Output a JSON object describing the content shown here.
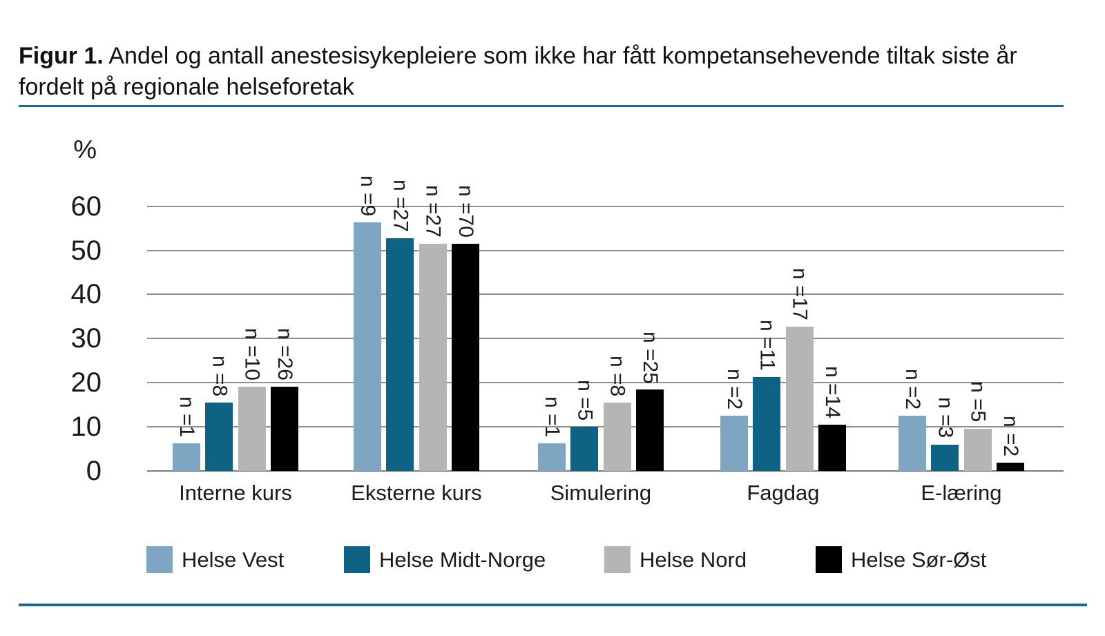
{
  "title": {
    "prefix": "Figur 1.",
    "rest": " Andel og antall anestesisykepleiere som ikke har fått kompetansehevende tiltak siste år fordelt på regionale helseforetak"
  },
  "colors": {
    "divider_rule": "#1b6890",
    "gridline": "#8e8e8e",
    "text": "#1a1a1a"
  },
  "chart_data": {
    "type": "bar",
    "title": "Figur 1. Andel og antall anestesisykepleiere som ikke har fått kompetansehevende tiltak siste år fordelt på regionale helseforetak",
    "xlabel": "",
    "ylabel": "%",
    "ylim": [
      0,
      60
    ],
    "yticks": [
      0,
      10,
      20,
      30,
      40,
      50,
      60
    ],
    "grid": true,
    "legend_position": "bottom",
    "categories": [
      "Interne kurs",
      "Eksterne kurs",
      "Simulering",
      "Fagdag",
      "E-læring"
    ],
    "series": [
      {
        "name": "Helse Vest",
        "color": "#7ea6c2",
        "values": [
          6.3,
          56.3,
          6.3,
          12.5,
          12.5
        ],
        "labels": [
          "n =1",
          "n =9",
          "n =1",
          "n =2",
          "n =2"
        ]
      },
      {
        "name": "Helse Midt-Norge",
        "color": "#0e6283",
        "values": [
          15.5,
          52.7,
          10.0,
          21.3,
          6.0
        ],
        "labels": [
          "n =8",
          "n =27",
          "n =5",
          "n =11",
          "n =3"
        ]
      },
      {
        "name": "Helse Nord",
        "color": "#b5b5b5",
        "values": [
          19.1,
          51.5,
          15.5,
          32.7,
          9.6
        ],
        "labels": [
          "n =10",
          "n =27",
          "n =8",
          "n =17",
          "n =5"
        ]
      },
      {
        "name": "Helse Sør-Øst",
        "color": "#000000",
        "values": [
          19.1,
          51.5,
          18.4,
          10.5,
          1.8
        ],
        "labels": [
          "n =26",
          "n =70",
          "n =25",
          "n =14",
          "n =2"
        ]
      }
    ]
  }
}
